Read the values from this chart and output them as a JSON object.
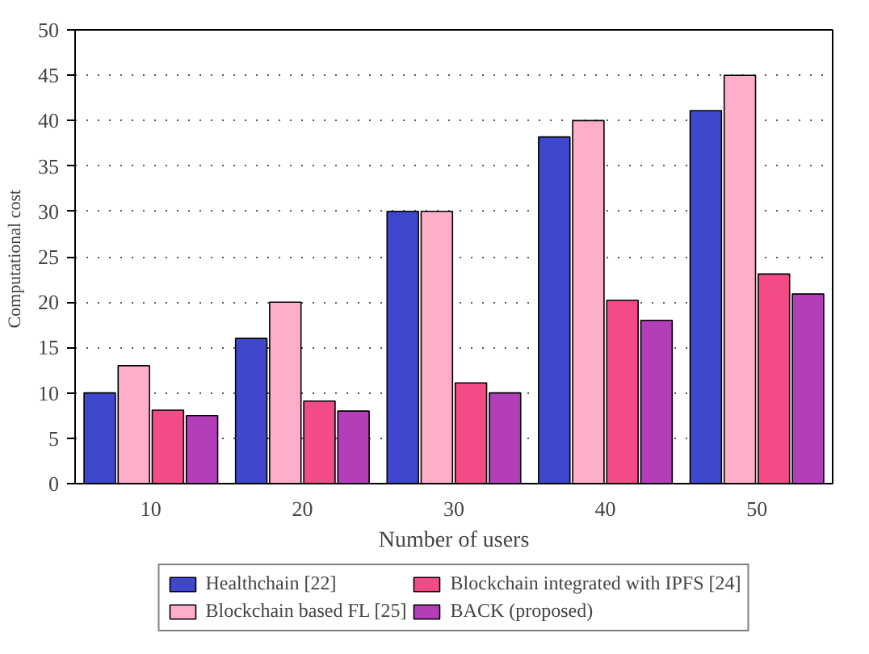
{
  "chart_data": {
    "type": "bar",
    "xlabel": "Number of users",
    "ylabel": "Computational  cost",
    "categories": [
      "10",
      "20",
      "30",
      "40",
      "50"
    ],
    "series": [
      {
        "name": "Healthchain [22]",
        "color": "#3f48cc",
        "values": [
          10,
          16,
          30,
          38.2,
          41.1
        ]
      },
      {
        "name": "Blockchain based FL [25]",
        "color": "#ffaec9",
        "values": [
          13,
          20,
          30,
          40,
          45
        ]
      },
      {
        "name": "Blockchain integrated with IPFS [24]",
        "color": "#f34b87",
        "values": [
          8.1,
          9.1,
          11.1,
          20.2,
          23.1
        ]
      },
      {
        "name": "BACK (proposed)",
        "color": "#b23fb8",
        "values": [
          7.5,
          8,
          10,
          18,
          20.9
        ]
      }
    ],
    "ylim": [
      0,
      50
    ],
    "yticks": [
      0,
      5,
      10,
      15,
      20,
      25,
      30,
      35,
      40,
      45,
      50
    ],
    "grid": "y",
    "legend": "bottom"
  }
}
